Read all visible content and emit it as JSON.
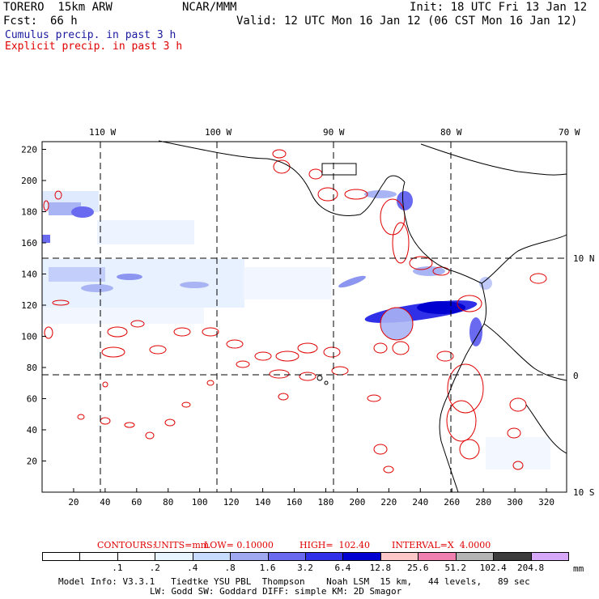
{
  "header": {
    "model": "TORERO  15km ARW",
    "org": "NCAR/MMM",
    "init": "Init: 18 UTC Fri 13 Jan 12",
    "fcst_label": "Fcst:",
    "fcst_value": "66 h",
    "valid": "Valid: 12 UTC Mon 16 Jan 12 (06 CST Mon 16 Jan 12)",
    "field1": "Cumulus precip. in past 3 h",
    "field2": "Explicit precip. in past 3 h"
  },
  "colors": {
    "coast": "#000000",
    "explicit_contour": "#e00000",
    "field1_text": "#1a1aa0",
    "field2_text": "#e00000"
  },
  "top_lon_labels": [
    "110 W",
    "100 W",
    "90 W",
    "80 W",
    "70 W"
  ],
  "right_lat_labels": [
    "10 N",
    "0",
    "10 S"
  ],
  "x_ticks": [
    "20",
    "40",
    "60",
    "80",
    "100",
    "120",
    "140",
    "160",
    "180",
    "200",
    "220",
    "240",
    "260",
    "280",
    "300",
    "320"
  ],
  "y_ticks": [
    "20",
    "40",
    "60",
    "80",
    "100",
    "120",
    "140",
    "160",
    "180",
    "200",
    "220"
  ],
  "contour_info": {
    "contours": "CONTOURS:",
    "units": "UNITS=mm",
    "low": "LOW= 0.10000",
    "high": "HIGH=  102.40",
    "interval": "INTERVAL=X  4.0000"
  },
  "colorbar": {
    "labels": [
      ".1",
      ".2",
      ".4",
      ".8",
      "1.6",
      "3.2",
      "6.4",
      "12.8",
      "25.6",
      "51.2",
      "102.4",
      "204.8"
    ],
    "unit": "mm",
    "colors": [
      "#ffffff",
      "#ffffff",
      "#ffffff",
      "#e8f4ff",
      "#c8dcff",
      "#a0a8f0",
      "#6a6af0",
      "#3030e8",
      "#0000d0",
      "#ffc8c8",
      "#f080b0",
      "#b4b4b4",
      "#3c3c3c",
      "#d8a8f8"
    ]
  },
  "footer": {
    "line1": "Model Info: V3.3.1   Tiedtke YSU PBL  Thompson    Noah LSM  15 km,   44 levels,   89 sec",
    "line2": "LW: Godd SW: Goddard DIFF: simple KM: 2D Smagor"
  }
}
